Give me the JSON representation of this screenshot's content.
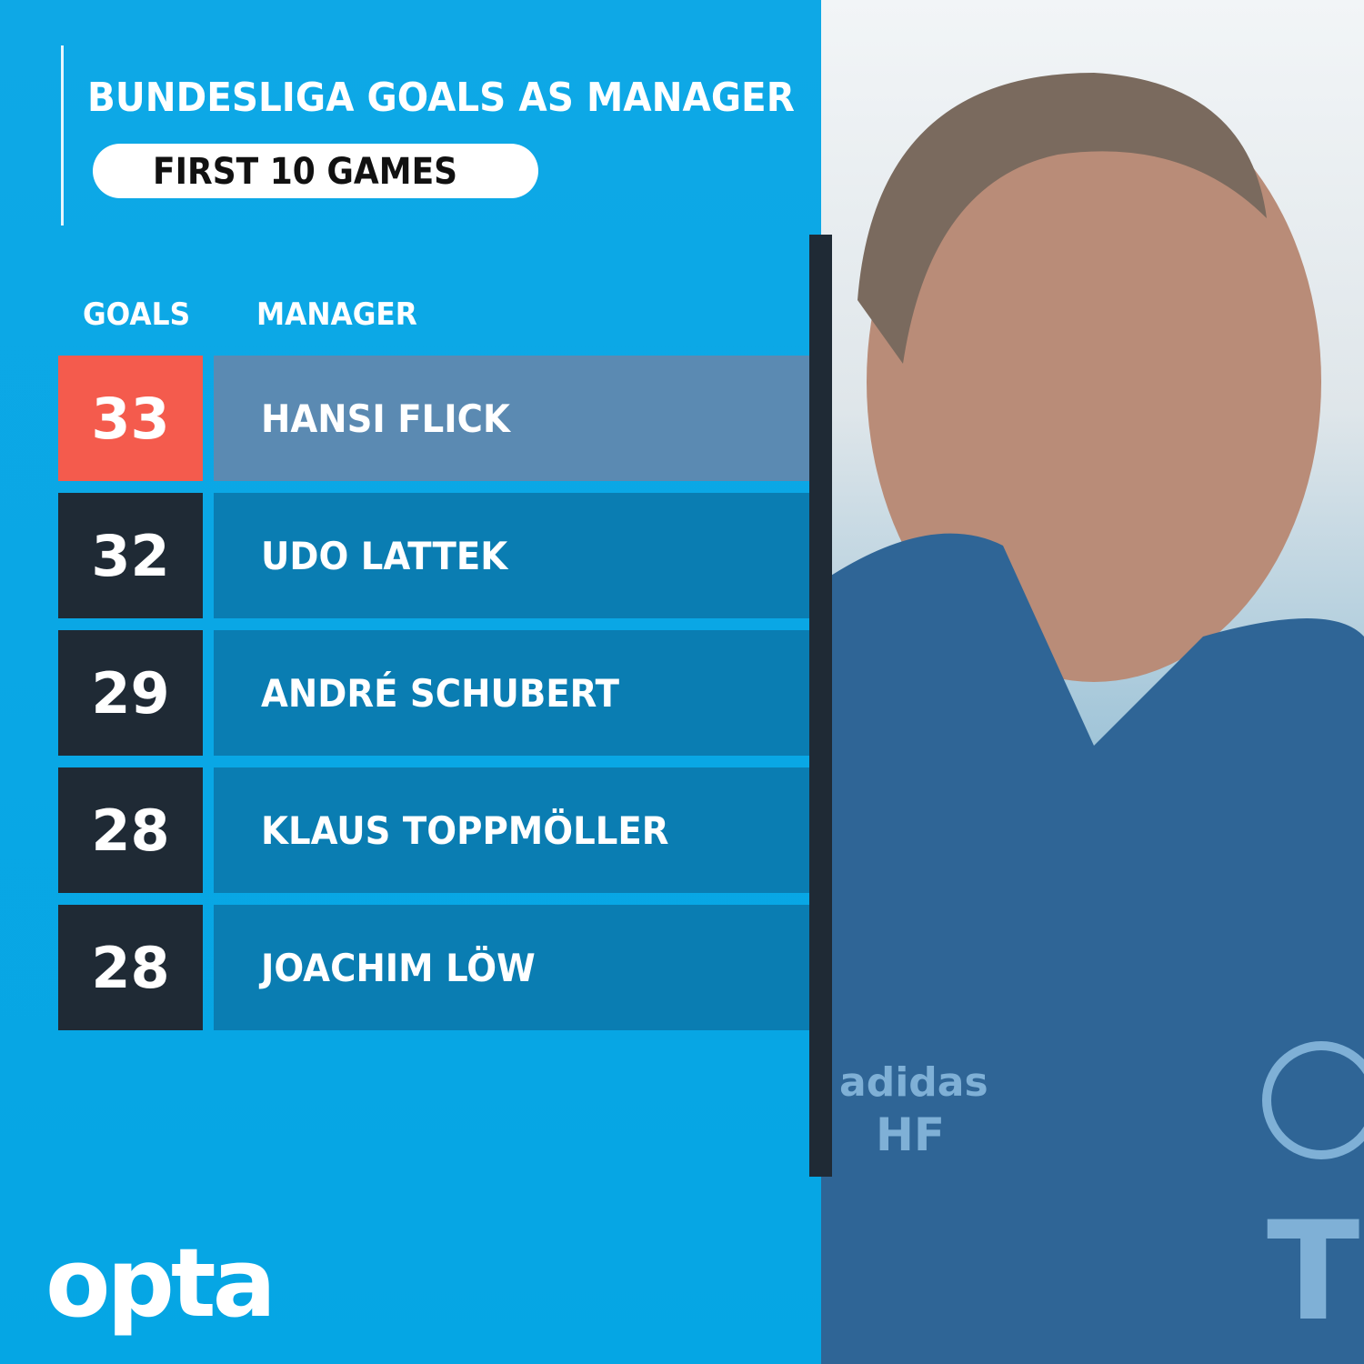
{
  "header": {
    "title": "BUNDESLIGA GOALS AS MANAGER",
    "subtitle": "FIRST 10 GAMES"
  },
  "chart_data": {
    "type": "table",
    "title": "BUNDESLIGA GOALS AS MANAGER",
    "subtitle": "FIRST 10 GAMES",
    "columns": [
      "GOALS",
      "MANAGER"
    ],
    "rows": [
      {
        "goals": "33",
        "manager": "HANSI FLICK",
        "highlight": true
      },
      {
        "goals": "32",
        "manager": "UDO LATTEK",
        "highlight": false
      },
      {
        "goals": "29",
        "manager": "ANDRÉ SCHUBERT",
        "highlight": false
      },
      {
        "goals": "28",
        "manager": "KLAUS TOPPMÖLLER",
        "highlight": false
      },
      {
        "goals": "28",
        "manager": "JOACHIM LÖW",
        "highlight": false
      }
    ]
  },
  "brand": {
    "logo": "opta"
  },
  "colors": {
    "background": "#0aa9e6",
    "highlight_goals": "#f45b4d",
    "highlight_name": "#5b8ab2",
    "goals_box": "#1f2a35",
    "name_box": "#0a7db2"
  },
  "photo": {
    "jacket_text": [
      "adidas",
      "HF"
    ]
  }
}
